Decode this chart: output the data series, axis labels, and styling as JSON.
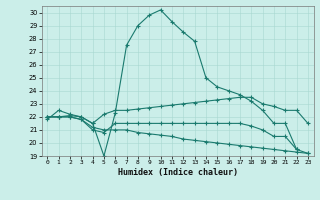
{
  "xlabel": "Humidex (Indice chaleur)",
  "bg_color": "#cbeee9",
  "grid_color": "#a8d8d0",
  "line_color": "#1a7a6e",
  "xlim": [
    -0.5,
    23.5
  ],
  "ylim": [
    19,
    30.5
  ],
  "xticks": [
    0,
    1,
    2,
    3,
    4,
    5,
    6,
    7,
    8,
    9,
    10,
    11,
    12,
    13,
    14,
    15,
    16,
    17,
    18,
    19,
    20,
    21,
    22,
    23
  ],
  "yticks": [
    19,
    20,
    21,
    22,
    23,
    24,
    25,
    26,
    27,
    28,
    29,
    30
  ],
  "line1_x": [
    0,
    1,
    2,
    3,
    4,
    5,
    6,
    7,
    8,
    9,
    10,
    11,
    12,
    13,
    14,
    15,
    16,
    17,
    18,
    19,
    20,
    21,
    22
  ],
  "line1_y": [
    21.8,
    22.5,
    22.2,
    22.0,
    21.5,
    19.0,
    22.3,
    27.5,
    29.0,
    29.8,
    30.2,
    29.3,
    28.5,
    27.8,
    25.0,
    24.3,
    24.0,
    23.7,
    23.2,
    22.5,
    21.5,
    21.5,
    19.5
  ],
  "line2_x": [
    0,
    1,
    2,
    3,
    4,
    5,
    6,
    7,
    8,
    9,
    10,
    11,
    12,
    13,
    14,
    15,
    16,
    17,
    18,
    19,
    20,
    21,
    22,
    23
  ],
  "line2_y": [
    22.0,
    22.0,
    22.1,
    22.0,
    21.5,
    22.2,
    22.5,
    22.5,
    22.6,
    22.7,
    22.8,
    22.9,
    23.0,
    23.1,
    23.2,
    23.3,
    23.4,
    23.5,
    23.5,
    23.0,
    22.8,
    22.5,
    22.5,
    21.5
  ],
  "line3_x": [
    0,
    1,
    2,
    3,
    4,
    5,
    6,
    7,
    8,
    9,
    10,
    11,
    12,
    13,
    14,
    15,
    16,
    17,
    18,
    19,
    20,
    21,
    22,
    23
  ],
  "line3_y": [
    22.0,
    22.0,
    22.0,
    21.8,
    21.0,
    20.8,
    21.5,
    21.5,
    21.5,
    21.5,
    21.5,
    21.5,
    21.5,
    21.5,
    21.5,
    21.5,
    21.5,
    21.5,
    21.3,
    21.0,
    20.5,
    20.5,
    19.5,
    19.2
  ],
  "line4_x": [
    0,
    1,
    2,
    3,
    4,
    5,
    6,
    7,
    8,
    9,
    10,
    11,
    12,
    13,
    14,
    15,
    16,
    17,
    18,
    19,
    20,
    21,
    22,
    23
  ],
  "line4_y": [
    22.0,
    22.0,
    22.0,
    21.8,
    21.2,
    21.0,
    21.0,
    21.0,
    20.8,
    20.7,
    20.6,
    20.5,
    20.3,
    20.2,
    20.1,
    20.0,
    19.9,
    19.8,
    19.7,
    19.6,
    19.5,
    19.4,
    19.3,
    19.2
  ]
}
